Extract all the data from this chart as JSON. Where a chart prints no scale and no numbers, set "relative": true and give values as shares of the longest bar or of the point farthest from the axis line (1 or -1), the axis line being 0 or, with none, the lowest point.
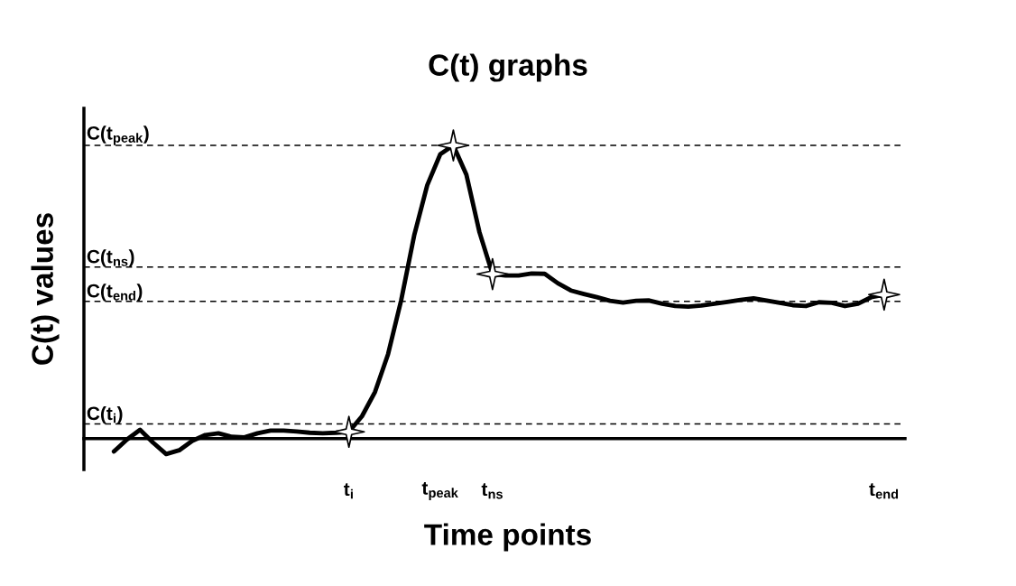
{
  "chart_data": {
    "type": "line",
    "title": "C(t) graphs",
    "xlabel": "Time points",
    "ylabel": "C(t) values",
    "relative": true,
    "categories": [
      null,
      null,
      null,
      null,
      null,
      null,
      null,
      null,
      null,
      null,
      null,
      null,
      null,
      null,
      null,
      null,
      null,
      null,
      "t$_{i}$",
      null,
      null,
      null,
      null,
      null,
      null,
      "t$_{peak}$",
      null,
      null,
      null,
      "t$_{ns}$",
      null,
      null,
      null,
      null,
      null,
      null,
      null,
      null,
      null,
      null,
      null,
      null,
      null,
      null,
      null,
      null,
      null,
      null,
      null,
      null,
      null,
      null,
      null,
      null,
      null,
      null,
      null,
      null,
      null,
      "t$_{end}$"
    ],
    "series": [
      {
        "color": "#000000",
        "marker": "none",
        "line_style": "solid",
        "values": [
          -0.044,
          -0.003,
          0.03,
          -0.014,
          -0.053,
          -0.04,
          -0.008,
          0.012,
          0.018,
          0.006,
          0.004,
          0.018,
          0.027,
          0.027,
          0.024,
          0.02,
          0.018,
          0.02,
          0.023,
          0.076,
          0.159,
          0.288,
          0.471,
          0.693,
          0.864,
          0.97,
          1,
          0.9,
          0.704,
          0.561,
          0.556,
          0.556,
          0.563,
          0.562,
          0.53,
          0.505,
          0.493,
          0.482,
          0.47,
          0.464,
          0.47,
          0.471,
          0.46,
          0.452,
          0.45,
          0.454,
          0.46,
          0.466,
          0.473,
          0.478,
          0.471,
          0.463,
          0.455,
          0.452,
          0.465,
          0.463,
          0.452,
          0.46,
          0.482,
          0.491
        ]
      },
      {
        "type": "scatter",
        "color": "#ffffff",
        "marker": "star",
        "values": [
          null,
          null,
          null,
          null,
          null,
          null,
          null,
          null,
          null,
          null,
          null,
          null,
          null,
          null,
          null,
          null,
          null,
          null,
          0.023,
          null,
          null,
          null,
          null,
          null,
          null,
          null,
          1,
          null,
          null,
          0.561,
          null,
          null,
          null,
          null,
          null,
          null,
          null,
          null,
          null,
          null,
          null,
          null,
          null,
          null,
          null,
          null,
          null,
          null,
          null,
          null,
          null,
          null,
          null,
          null,
          null,
          null,
          null,
          null,
          null,
          0.491
        ]
      }
    ],
    "ref_lines": [
      {
        "axis": "y",
        "value": 1,
        "label": "C(t$_{peak}$)",
        "color": "#000000",
        "line_style": "dashed"
      },
      {
        "axis": "y",
        "value": 0.585,
        "label": "C(t$_{ns}$)",
        "color": "#000000",
        "line_style": "dashed"
      },
      {
        "axis": "y",
        "value": 0.468,
        "label": "C(t$_{end}$)",
        "color": "#000000",
        "line_style": "dashed"
      },
      {
        "axis": "y",
        "value": 0.05,
        "label": "C(t$_{i}$)",
        "color": "#000000",
        "line_style": "dashed"
      }
    ],
    "grid": false,
    "legend": false
  }
}
